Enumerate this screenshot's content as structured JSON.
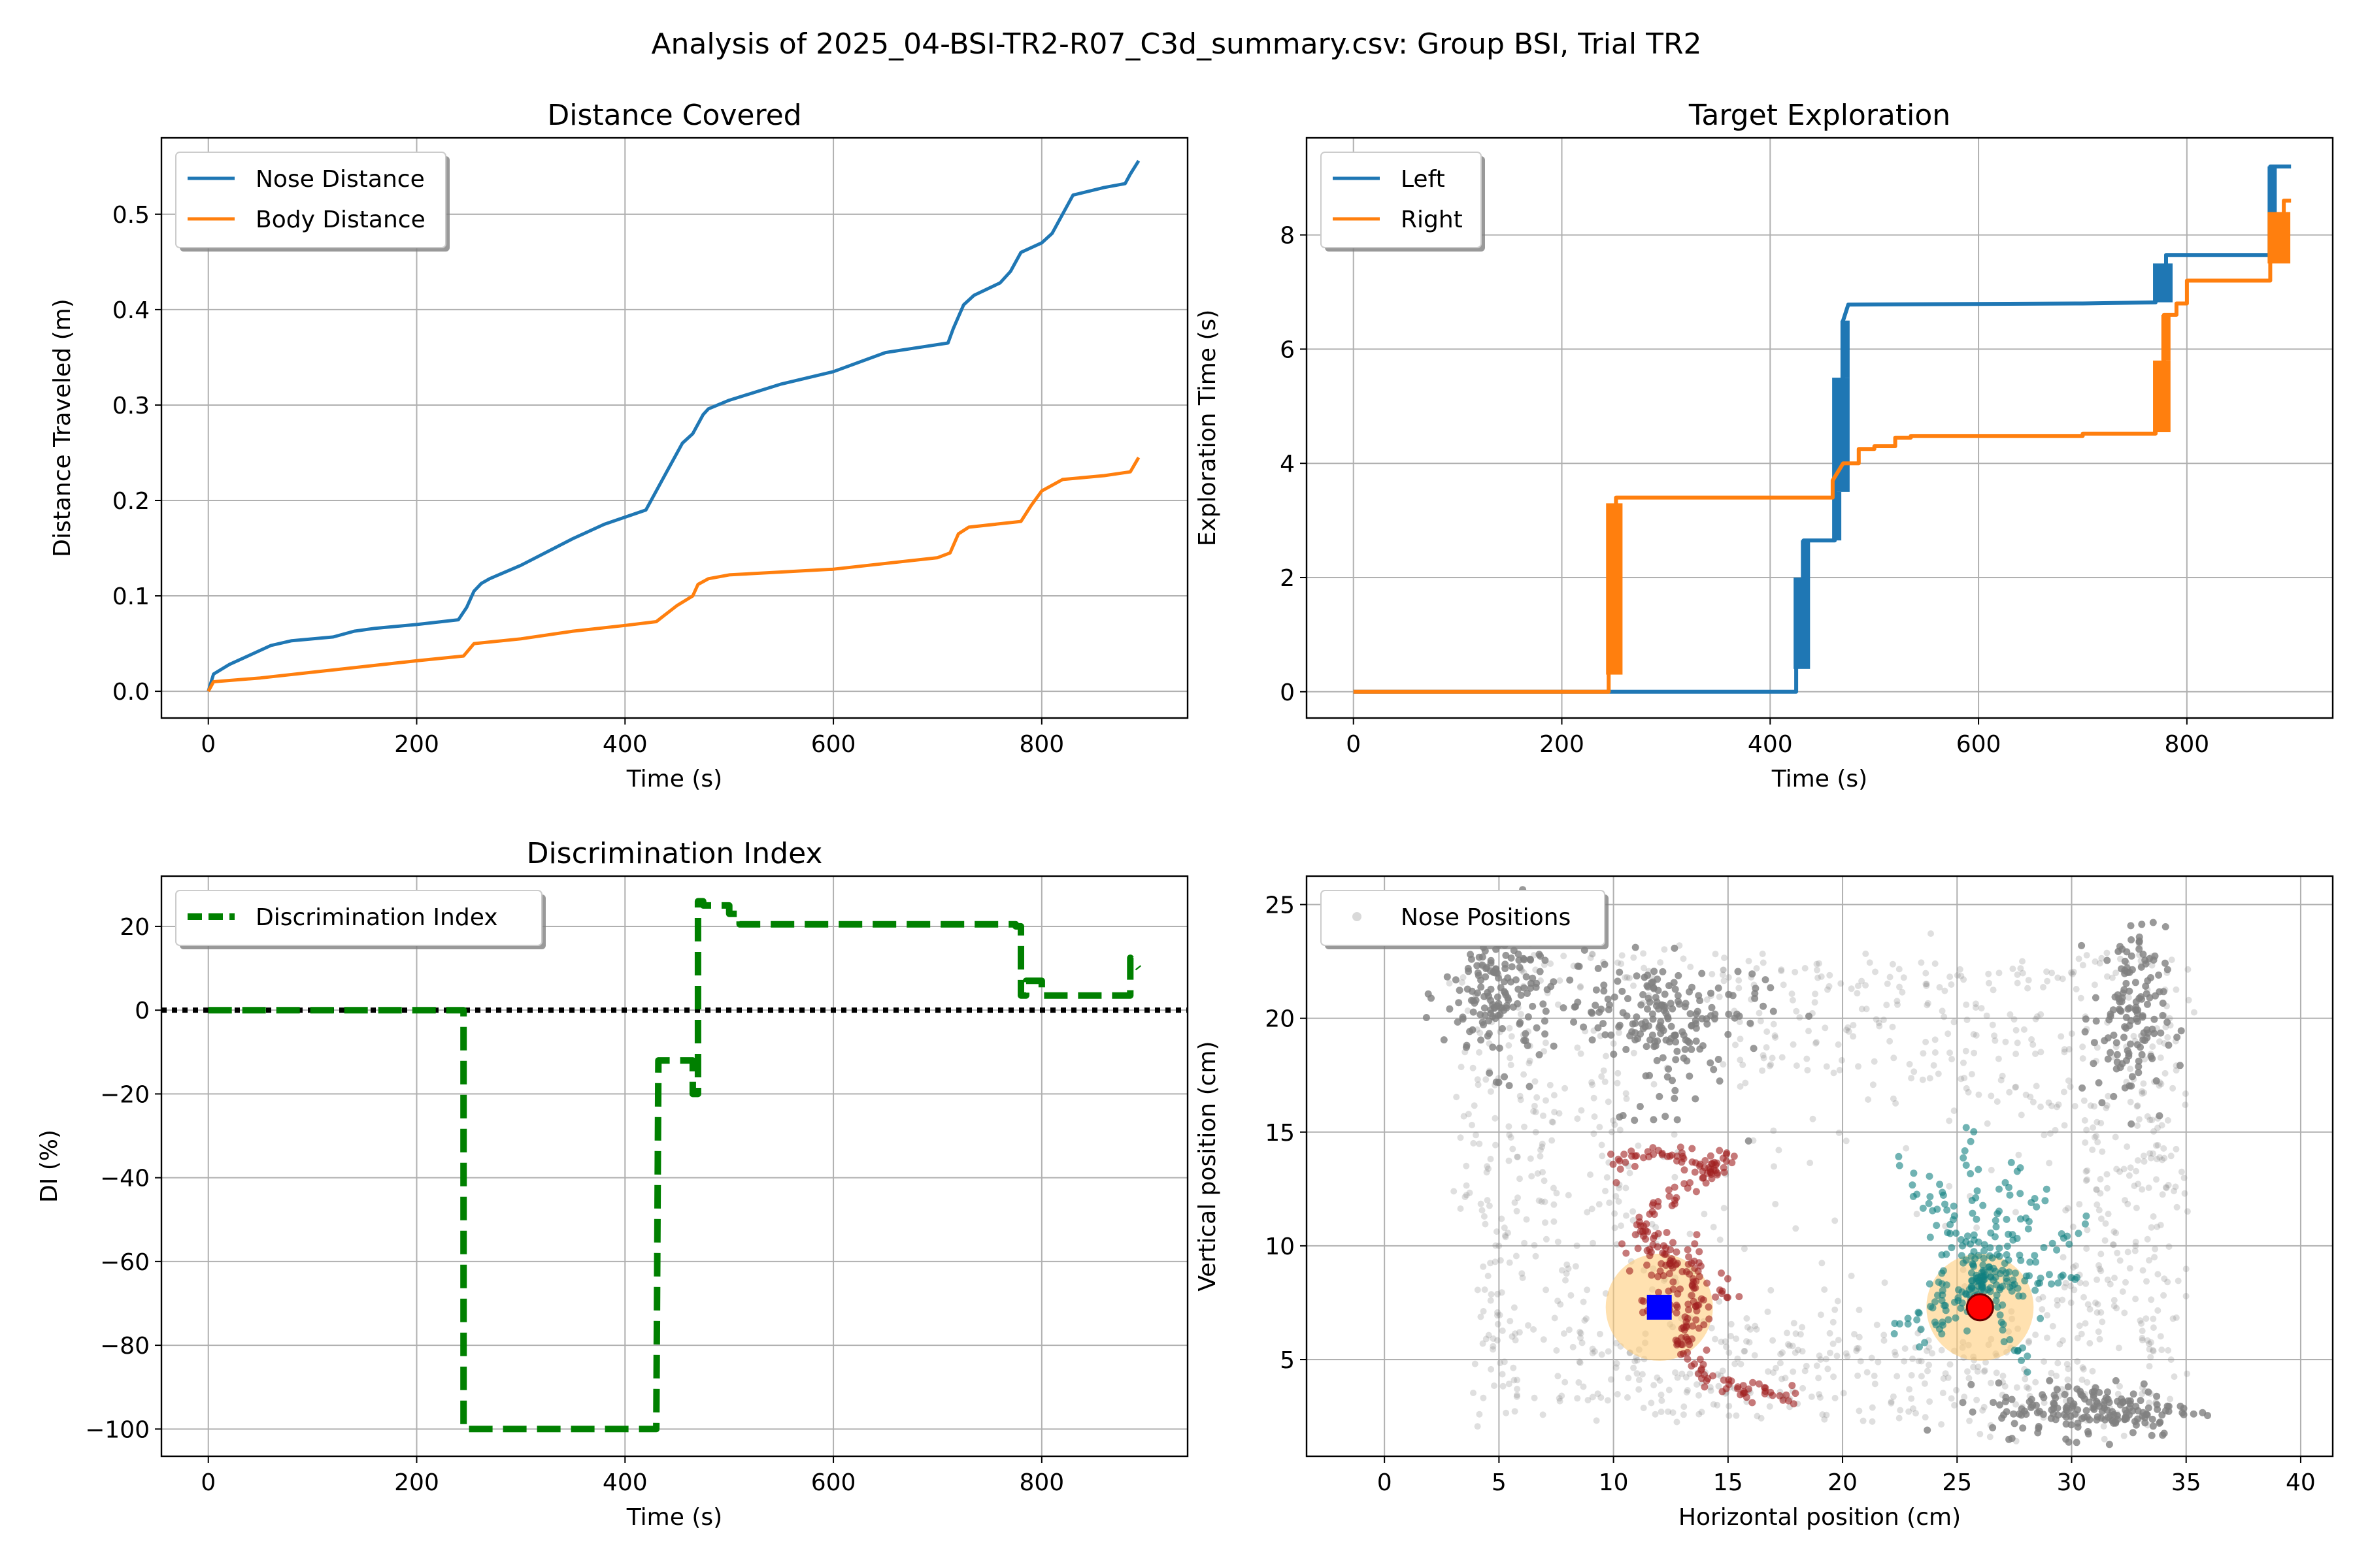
{
  "figure": {
    "suptitle": "Analysis of 2025_04-BSI-TR2-R07_C3d_summary.csv: Group BSI, Trial TR2"
  },
  "chart_data": [
    {
      "id": "distance",
      "type": "line",
      "title": "Distance Covered",
      "xlabel": "Time (s)",
      "ylabel": "Distance Traveled (m)",
      "xlim": [
        -45,
        940
      ],
      "ylim": [
        -0.028,
        0.58
      ],
      "xticks": [
        0,
        200,
        400,
        600,
        800
      ],
      "yticks": [
        0.0,
        0.1,
        0.2,
        0.3,
        0.4,
        0.5
      ],
      "ytick_labels": [
        "0.0",
        "0.1",
        "0.2",
        "0.3",
        "0.4",
        "0.5"
      ],
      "grid": true,
      "legend": "upper-left",
      "series": [
        {
          "name": "Nose Distance",
          "color": "#1f77b4",
          "x": [
            0,
            5,
            20,
            40,
            60,
            80,
            120,
            140,
            160,
            200,
            240,
            248,
            255,
            262,
            270,
            300,
            350,
            380,
            420,
            430,
            440,
            455,
            465,
            475,
            480,
            500,
            550,
            600,
            650,
            680,
            710,
            715,
            725,
            735,
            760,
            770,
            780,
            800,
            810,
            830,
            860,
            880,
            885,
            893
          ],
          "y": [
            0.0,
            0.018,
            0.028,
            0.038,
            0.048,
            0.053,
            0.057,
            0.063,
            0.066,
            0.07,
            0.075,
            0.088,
            0.105,
            0.113,
            0.118,
            0.132,
            0.16,
            0.175,
            0.19,
            0.21,
            0.23,
            0.26,
            0.27,
            0.29,
            0.296,
            0.305,
            0.322,
            0.335,
            0.355,
            0.36,
            0.365,
            0.38,
            0.405,
            0.415,
            0.428,
            0.44,
            0.46,
            0.47,
            0.48,
            0.52,
            0.528,
            0.532,
            0.542,
            0.556
          ]
        },
        {
          "name": "Body Distance",
          "color": "#ff7f0e",
          "x": [
            0,
            5,
            50,
            100,
            150,
            200,
            245,
            255,
            300,
            350,
            400,
            430,
            450,
            465,
            470,
            480,
            500,
            600,
            700,
            712,
            720,
            730,
            780,
            790,
            800,
            820,
            860,
            885,
            893
          ],
          "y": [
            0.0,
            0.01,
            0.014,
            0.02,
            0.026,
            0.032,
            0.037,
            0.05,
            0.055,
            0.063,
            0.069,
            0.073,
            0.09,
            0.1,
            0.112,
            0.118,
            0.122,
            0.128,
            0.14,
            0.145,
            0.165,
            0.172,
            0.178,
            0.195,
            0.21,
            0.222,
            0.226,
            0.23,
            0.245
          ]
        }
      ]
    },
    {
      "id": "exploration",
      "type": "line",
      "title": "Target Exploration",
      "xlabel": "Time (s)",
      "ylabel": "Exploration Time (s)",
      "xlim": [
        -45,
        940
      ],
      "ylim": [
        -0.46,
        9.7
      ],
      "xticks": [
        0,
        200,
        400,
        600,
        800
      ],
      "yticks": [
        0,
        2,
        4,
        6,
        8
      ],
      "grid": true,
      "legend": "upper-left",
      "series": [
        {
          "name": "Left",
          "color": "#1f77b4",
          "x": [
            0,
            425,
            425,
            432,
            432,
            462,
            462,
            470,
            470,
            475,
            475,
            700,
            700,
            770,
            770,
            780,
            780,
            880,
            880,
            900
          ],
          "y": [
            0,
            0,
            0.4,
            2.0,
            2.65,
            2.65,
            3.5,
            5.5,
            6.5,
            6.78,
            6.78,
            6.8,
            6.8,
            6.82,
            6.82,
            7.5,
            7.65,
            7.65,
            9.2,
            9.2
          ]
        },
        {
          "name": "Right",
          "color": "#ff7f0e",
          "x": [
            0,
            245,
            245,
            252,
            252,
            460,
            460,
            470,
            470,
            485,
            485,
            500,
            500,
            520,
            520,
            535,
            535,
            700,
            700,
            770,
            770,
            778,
            778,
            790,
            790,
            800,
            800,
            880,
            880,
            893,
            893,
            900
          ],
          "y": [
            0,
            0,
            0.3,
            3.3,
            3.4,
            3.4,
            3.7,
            4.0,
            4.0,
            4.0,
            4.25,
            4.25,
            4.3,
            4.3,
            4.45,
            4.45,
            4.48,
            4.48,
            4.52,
            4.52,
            4.55,
            5.8,
            6.6,
            6.6,
            6.8,
            6.8,
            7.2,
            7.2,
            7.5,
            8.4,
            8.6,
            8.6
          ]
        }
      ]
    },
    {
      "id": "discrimination",
      "type": "line",
      "title": "Discrimination Index",
      "xlabel": "Time (s)",
      "ylabel": "DI (%)",
      "xlim": [
        -45,
        940
      ],
      "ylim": [
        -106.5,
        32
      ],
      "xticks": [
        0,
        200,
        400,
        600,
        800
      ],
      "yticks": [
        -100,
        -80,
        -60,
        -40,
        -20,
        0,
        20
      ],
      "ytick_labels": [
        "−100",
        "−80",
        "−60",
        "−40",
        "−20",
        "0",
        "20"
      ],
      "grid": true,
      "legend": "upper-left",
      "zero_line": {
        "y": 0,
        "color": "#000000",
        "style": "dotted"
      },
      "series": [
        {
          "name": "Discrimination Index",
          "color": "#008000",
          "style": "dashed",
          "x": [
            0,
            245,
            245,
            430,
            430,
            432,
            432,
            465,
            465,
            470,
            470,
            475,
            475,
            500,
            500,
            510,
            510,
            775,
            775,
            780,
            780,
            785,
            785,
            800,
            800,
            885,
            885,
            893
          ],
          "y": [
            0,
            0,
            -100,
            -100,
            -100,
            -12,
            -12,
            -12,
            -20,
            -20,
            26,
            26,
            25,
            25,
            23,
            23,
            20.5,
            20.5,
            20,
            20,
            3.5,
            3.5,
            7,
            7,
            3.5,
            3.5,
            12.5,
            10
          ]
        }
      ]
    },
    {
      "id": "positions",
      "type": "scatter",
      "title": "",
      "xlabel": "Horizontal position (cm)",
      "ylabel": "Vertical position (cm)",
      "xlim": [
        -3.4,
        41.4
      ],
      "ylim": [
        0.75,
        26.25
      ],
      "xticks": [
        0,
        5,
        10,
        15,
        20,
        25,
        30,
        35,
        40
      ],
      "yticks": [
        5,
        10,
        15,
        20,
        25
      ],
      "grid": true,
      "legend": "upper-left",
      "series": [
        {
          "name": "Nose Positions",
          "color": "#808080"
        }
      ],
      "targets": [
        {
          "shape": "square",
          "x": 12,
          "y": 7.3,
          "color": "#0000ff",
          "zone_color": "#ffc870"
        },
        {
          "shape": "circle",
          "x": 26,
          "y": 7.3,
          "color": "#ff0000",
          "zone_color": "#ffc870"
        }
      ],
      "left_exploration_color": "#a02020",
      "right_exploration_color": "#108080"
    }
  ]
}
